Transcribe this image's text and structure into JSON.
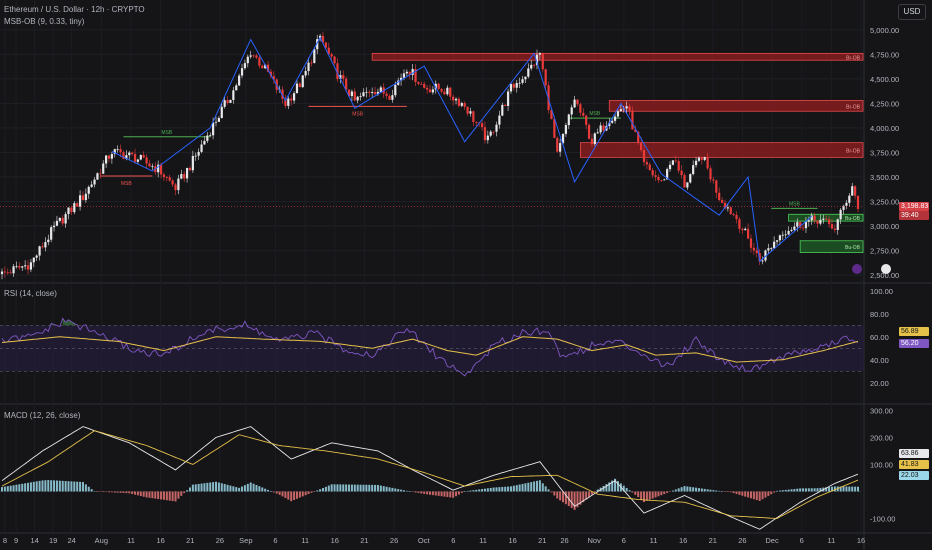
{
  "header": {
    "title": "Ethereum / U.S. Dollar · 12h · CRYPTO",
    "indicator": "MSB-OB (9, 0.33, tiny)",
    "currency_button": "USD"
  },
  "colors": {
    "background": "#151518",
    "candle_up": "#e8e8ea",
    "candle_down": "#ea3b3b",
    "zigzag": "#2962ff",
    "bear_ob_fill": "#8c1d20",
    "bull_ob_fill": "#1e5a26",
    "rsi_line": "#7e57c2",
    "rsi_ma": "#e6c14a",
    "macd_line": "#e8e8ea",
    "signal_line": "#e6c14a",
    "hist_pos": "#9ad7e8",
    "hist_neg": "#e57373"
  },
  "price_axis": {
    "ticks": [
      "5,000.00",
      "4,750.00",
      "4,500.00",
      "4,250.00",
      "4,000.00",
      "3,750.00",
      "3,500.00",
      "3,250.00",
      "3,000.00",
      "2,750.00",
      "2,500.00"
    ],
    "current_price": "3,198.83",
    "countdown": "39:40"
  },
  "rsi_panel": {
    "label": "RSI (14, close)",
    "ticks": [
      "100.00",
      "80.00",
      "60.00",
      "40.00",
      "20.00"
    ],
    "values": {
      "rsi": "56.89",
      "ma": "56.20"
    }
  },
  "macd_panel": {
    "label": "MACD (12, 26, close)",
    "ticks": [
      "300.00",
      "200.00",
      "100.00",
      "-100.00"
    ],
    "values": {
      "histogram": "22.03",
      "signal": "41.83",
      "macd": "63.86"
    }
  },
  "time_axis": {
    "labels": [
      "8",
      "9",
      "14",
      "19",
      "24",
      "Aug",
      "11",
      "16",
      "21",
      "26",
      "Sep",
      "6",
      "11",
      "16",
      "21",
      "26",
      "Oct",
      "6",
      "11",
      "16",
      "21",
      "26",
      "Nov",
      "6",
      "11",
      "16",
      "21",
      "26",
      "Dec",
      "6",
      "11",
      "16"
    ]
  },
  "annotations": {
    "msb_label": "MSB",
    "bear_ob": "Br-OB",
    "bull_ob": "Bu-OB"
  },
  "chart_data": {
    "type": "candlestick",
    "symbol": "Ethereum / U.S. Dollar",
    "interval": "12h",
    "ylim": [
      2450,
      5100
    ],
    "anchors": [
      [
        0,
        2510
      ],
      [
        10,
        2620
      ],
      [
        18,
        2980
      ],
      [
        28,
        3300
      ],
      [
        38,
        3760
      ],
      [
        46,
        3700
      ],
      [
        54,
        3580
      ],
      [
        60,
        3390
      ],
      [
        66,
        3660
      ],
      [
        72,
        3980
      ],
      [
        80,
        4380
      ],
      [
        86,
        4780
      ],
      [
        92,
        4560
      ],
      [
        98,
        4250
      ],
      [
        104,
        4490
      ],
      [
        110,
        4930
      ],
      [
        116,
        4550
      ],
      [
        122,
        4270
      ],
      [
        128,
        4400
      ],
      [
        134,
        4340
      ],
      [
        140,
        4620
      ],
      [
        146,
        4410
      ],
      [
        152,
        4400
      ],
      [
        160,
        4230
      ],
      [
        168,
        3870
      ],
      [
        176,
        4400
      ],
      [
        182,
        4580
      ],
      [
        186,
        4760
      ],
      [
        192,
        3710
      ],
      [
        198,
        4300
      ],
      [
        204,
        3860
      ],
      [
        210,
        4100
      ],
      [
        216,
        4230
      ],
      [
        222,
        3620
      ],
      [
        228,
        3440
      ],
      [
        232,
        3700
      ],
      [
        236,
        3420
      ],
      [
        242,
        3720
      ],
      [
        248,
        3300
      ],
      [
        254,
        3080
      ],
      [
        262,
        2650
      ],
      [
        270,
        2950
      ],
      [
        276,
        3020
      ],
      [
        282,
        3070
      ],
      [
        288,
        2980
      ],
      [
        294,
        3410
      ],
      [
        296,
        3200
      ]
    ],
    "rsi_anchors": [
      [
        0,
        56
      ],
      [
        10,
        60
      ],
      [
        22,
        74
      ],
      [
        34,
        62
      ],
      [
        46,
        48
      ],
      [
        56,
        44
      ],
      [
        70,
        64
      ],
      [
        84,
        70
      ],
      [
        96,
        56
      ],
      [
        108,
        63
      ],
      [
        118,
        50
      ],
      [
        128,
        44
      ],
      [
        140,
        67
      ],
      [
        150,
        44
      ],
      [
        160,
        26
      ],
      [
        170,
        52
      ],
      [
        180,
        64
      ],
      [
        188,
        66
      ],
      [
        194,
        42
      ],
      [
        204,
        52
      ],
      [
        212,
        56
      ],
      [
        220,
        48
      ],
      [
        230,
        34
      ],
      [
        240,
        58
      ],
      [
        248,
        41
      ],
      [
        258,
        31
      ],
      [
        270,
        43
      ],
      [
        282,
        50
      ],
      [
        292,
        58
      ],
      [
        296,
        56
      ]
    ],
    "rsi_ma_anchors": [
      [
        0,
        55
      ],
      [
        20,
        60
      ],
      [
        40,
        56
      ],
      [
        56,
        48
      ],
      [
        74,
        60
      ],
      [
        90,
        58
      ],
      [
        110,
        56
      ],
      [
        128,
        50
      ],
      [
        142,
        58
      ],
      [
        154,
        48
      ],
      [
        164,
        44
      ],
      [
        180,
        60
      ],
      [
        192,
        58
      ],
      [
        204,
        48
      ],
      [
        216,
        53
      ],
      [
        226,
        44
      ],
      [
        240,
        46
      ],
      [
        254,
        38
      ],
      [
        270,
        40
      ],
      [
        284,
        48
      ],
      [
        296,
        56
      ]
    ],
    "macd_anchors": [
      [
        0,
        40
      ],
      [
        14,
        150
      ],
      [
        28,
        240
      ],
      [
        44,
        180
      ],
      [
        60,
        80
      ],
      [
        74,
        200
      ],
      [
        86,
        240
      ],
      [
        100,
        120
      ],
      [
        114,
        180
      ],
      [
        130,
        150
      ],
      [
        142,
        80
      ],
      [
        156,
        5
      ],
      [
        170,
        60
      ],
      [
        186,
        110
      ],
      [
        198,
        -55
      ],
      [
        212,
        40
      ],
      [
        222,
        -80
      ],
      [
        236,
        -15
      ],
      [
        248,
        -75
      ],
      [
        262,
        -140
      ],
      [
        276,
        -40
      ],
      [
        288,
        30
      ],
      [
        296,
        64
      ]
    ],
    "signal_anchors": [
      [
        0,
        20
      ],
      [
        16,
        110
      ],
      [
        32,
        225
      ],
      [
        50,
        170
      ],
      [
        66,
        100
      ],
      [
        82,
        210
      ],
      [
        96,
        170
      ],
      [
        112,
        150
      ],
      [
        130,
        120
      ],
      [
        146,
        70
      ],
      [
        160,
        20
      ],
      [
        176,
        55
      ],
      [
        192,
        60
      ],
      [
        206,
        -10
      ],
      [
        220,
        -30
      ],
      [
        236,
        -40
      ],
      [
        252,
        -90
      ],
      [
        268,
        -100
      ],
      [
        282,
        -20
      ],
      [
        296,
        42
      ]
    ],
    "zigzag": [
      [
        38,
        3760
      ],
      [
        52,
        3560
      ],
      [
        72,
        4000
      ],
      [
        86,
        4900
      ],
      [
        98,
        4280
      ],
      [
        110,
        4920
      ],
      [
        122,
        4200
      ],
      [
        146,
        4630
      ],
      [
        160,
        3860
      ],
      [
        184,
        4760
      ],
      [
        198,
        3450
      ],
      [
        214,
        4250
      ],
      [
        228,
        3530
      ],
      [
        248,
        3110
      ],
      [
        258,
        3500
      ],
      [
        262,
        2640
      ],
      [
        280,
        3100
      ]
    ],
    "order_blocks": [
      {
        "type": "bearish",
        "x0": 128,
        "x1": 300,
        "y0": 4690,
        "y1": 4760,
        "label": "Br-OB"
      },
      {
        "type": "bearish",
        "x0": 210,
        "x1": 300,
        "y0": 4170,
        "y1": 4280,
        "label": "Br-OB"
      },
      {
        "type": "bearish",
        "x0": 200,
        "x1": 300,
        "y0": 3700,
        "y1": 3850,
        "label": "Br-OB"
      },
      {
        "type": "bullish",
        "x0": 272,
        "x1": 300,
        "y0": 3050,
        "y1": 3120,
        "label": "Bu-OB"
      },
      {
        "type": "bullish",
        "x0": 276,
        "x1": 300,
        "y0": 2730,
        "y1": 2850,
        "label": "Bu-OB"
      }
    ],
    "msb_lines": [
      {
        "color": "green",
        "x0": 42,
        "x1": 72,
        "y": 3910
      },
      {
        "color": "red",
        "x0": 34,
        "x1": 52,
        "y": 3510
      },
      {
        "color": "red",
        "x0": 106,
        "x1": 140,
        "y": 4220
      },
      {
        "color": "green",
        "x0": 196,
        "x1": 214,
        "y": 4100
      },
      {
        "color": "green",
        "x0": 266,
        "x1": 282,
        "y": 3180
      }
    ]
  }
}
